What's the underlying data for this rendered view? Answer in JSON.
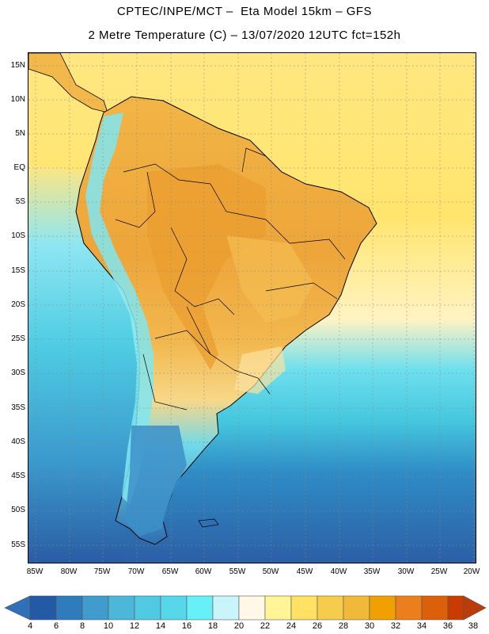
{
  "title": {
    "line1": "CPTEC/INPE/MCT –  Eta Model 15km – GFS",
    "line2": "2 Metre Temperature (C) – 13/07/2020 12UTC fct=152h"
  },
  "map": {
    "lat_labels": [
      "15N",
      "10N",
      "5N",
      "EQ",
      "5S",
      "10S",
      "15S",
      "20S",
      "25S",
      "30S",
      "35S",
      "40S",
      "45S",
      "50S",
      "55S"
    ],
    "lon_labels": [
      "85W",
      "80W",
      "75W",
      "70W",
      "65W",
      "60W",
      "55W",
      "50W",
      "45W",
      "40W",
      "35W",
      "30W",
      "25W",
      "20W"
    ],
    "colors": {
      "ocean_warm": "#ffe169",
      "ocean_cool": "#4fd3e6",
      "ocean_cold": "#2a5fa8",
      "land_hot": "#eea53a",
      "land_warm": "#f5c25a",
      "andes": "#6fe8f2",
      "border": "#000000"
    }
  },
  "colorbar": {
    "labels": [
      "4",
      "6",
      "8",
      "10",
      "12",
      "14",
      "16",
      "18",
      "20",
      "22",
      "24",
      "26",
      "28",
      "30",
      "32",
      "34",
      "36",
      "38"
    ],
    "colors": [
      "#235aa6",
      "#2f7cbd",
      "#3f9ccd",
      "#4cb7d9",
      "#52c9e2",
      "#57d8ea",
      "#68f0f8",
      "#c8f4fa",
      "#fff8e6",
      "#fff596",
      "#ffe164",
      "#f6cc4c",
      "#f0b93a",
      "#f0a000",
      "#eb7f1e",
      "#dc5f0a",
      "#c83c00"
    ],
    "min_color": "#2f70b8",
    "max_color": "#b93c0a"
  }
}
